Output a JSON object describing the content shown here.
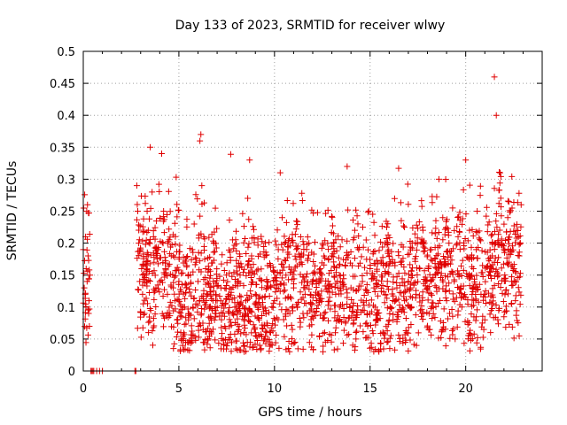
{
  "chart_data": {
    "type": "scatter",
    "title": "Day 133 of 2023, SRMTID for receiver wlwy",
    "xlabel": "GPS time / hours",
    "ylabel": "SRMTID / TECUs",
    "xlim": [
      0,
      24
    ],
    "ylim": [
      0,
      0.5
    ],
    "xticks": [
      0,
      5,
      10,
      15,
      20
    ],
    "xtick_labels": [
      "0",
      "5",
      "10",
      "15",
      "20"
    ],
    "yticks": [
      0,
      0.05,
      0.1,
      0.15,
      0.2,
      0.25,
      0.3,
      0.35,
      0.4,
      0.45,
      0.5
    ],
    "ytick_labels": [
      "0",
      "0.05",
      "0.1",
      "0.15",
      "0.2",
      "0.25",
      "0.3",
      "0.35",
      "0.4",
      "0.45",
      "0.5"
    ],
    "grid": true,
    "marker": "plus",
    "color": "#e00000",
    "series": [
      {
        "name": "SRMTID",
        "x": [
          0.0,
          0.05,
          0.1,
          0.12,
          0.15,
          0.18,
          0.2,
          0.22,
          0.25,
          0.28,
          0.3,
          0.32,
          0.35,
          0.4,
          0.45,
          0.5,
          0.55,
          0.7,
          0.85,
          1.0,
          2.7,
          2.75,
          2.8,
          2.85,
          2.9,
          2.95,
          3.0,
          3.05,
          3.1,
          3.2,
          3.3,
          3.4,
          3.5,
          3.6,
          3.7,
          3.8,
          3.9,
          4.0,
          4.1,
          4.2,
          4.3,
          4.4,
          4.5,
          4.6,
          4.7,
          4.8,
          4.9,
          5.0,
          5.1,
          5.2,
          5.3,
          5.4,
          5.5,
          5.6,
          5.7,
          5.8,
          5.9,
          6.0,
          6.1,
          6.15,
          6.2,
          6.3,
          6.4,
          6.5,
          6.6,
          6.7,
          6.8,
          6.9,
          7.0,
          7.2,
          7.4,
          7.6,
          7.8,
          8.0,
          8.2,
          8.4,
          8.5,
          8.6,
          8.7,
          8.8,
          9.0,
          9.2,
          9.4,
          9.6,
          9.8,
          10.0,
          10.2,
          10.3,
          10.4,
          10.6,
          10.8,
          11.0,
          11.2,
          11.4,
          11.6,
          11.8,
          12.0,
          12.2,
          12.4,
          12.6,
          12.8,
          13.0,
          13.2,
          13.4,
          13.6,
          13.8,
          14.0,
          14.2,
          14.4,
          14.6,
          14.8,
          15.0,
          15.2,
          15.4,
          15.6,
          15.8,
          16.0,
          16.2,
          16.4,
          16.6,
          16.8,
          17.0,
          17.2,
          17.4,
          17.6,
          17.8,
          18.0,
          18.2,
          18.4,
          18.6,
          18.8,
          19.0,
          19.2,
          19.4,
          19.6,
          19.8,
          20.0,
          20.2,
          20.4,
          20.6,
          20.8,
          21.0,
          21.2,
          21.3,
          21.4,
          21.5,
          21.6,
          21.8,
          22.0,
          22.2,
          22.4,
          22.6,
          22.8,
          22.9
        ],
        "y": [
          0.19,
          0.13,
          0.12,
          0.21,
          0.16,
          0.25,
          0.14,
          0.26,
          0.18,
          0.09,
          0.11,
          0.07,
          0.15,
          0.0,
          0.0,
          0.0,
          0.0,
          0.0,
          0.0,
          0.0,
          0.0,
          0.0,
          0.29,
          0.25,
          0.2,
          0.14,
          0.19,
          0.16,
          0.12,
          0.09,
          0.15,
          0.22,
          0.35,
          0.28,
          0.17,
          0.13,
          0.19,
          0.14,
          0.34,
          0.25,
          0.16,
          0.12,
          0.09,
          0.18,
          0.13,
          0.11,
          0.08,
          0.14,
          0.06,
          0.04,
          0.1,
          0.13,
          0.08,
          0.15,
          0.19,
          0.23,
          0.17,
          0.14,
          0.36,
          0.37,
          0.29,
          0.21,
          0.16,
          0.12,
          0.1,
          0.08,
          0.14,
          0.09,
          0.11,
          0.13,
          0.07,
          0.12,
          0.09,
          0.1,
          0.15,
          0.06,
          0.11,
          0.27,
          0.33,
          0.18,
          0.12,
          0.08,
          0.1,
          0.14,
          0.06,
          0.11,
          0.19,
          0.31,
          0.24,
          0.15,
          0.09,
          0.13,
          0.1,
          0.17,
          0.12,
          0.2,
          0.14,
          0.11,
          0.16,
          0.09,
          0.13,
          0.18,
          0.12,
          0.1,
          0.15,
          0.32,
          0.13,
          0.22,
          0.19,
          0.14,
          0.11,
          0.16,
          0.13,
          0.09,
          0.15,
          0.12,
          0.18,
          0.08,
          0.13,
          0.17,
          0.11,
          0.14,
          0.2,
          0.12,
          0.16,
          0.09,
          0.13,
          0.19,
          0.15,
          0.3,
          0.24,
          0.11,
          0.18,
          0.14,
          0.21,
          0.1,
          0.33,
          0.22,
          0.16,
          0.25,
          0.12,
          0.08,
          0.15,
          0.06,
          0.2,
          0.46,
          0.4,
          0.31,
          0.19,
          0.24,
          0.14,
          0.11,
          0.18,
          0.26
        ],
        "extra_cloud_seed": 1337
      }
    ]
  }
}
